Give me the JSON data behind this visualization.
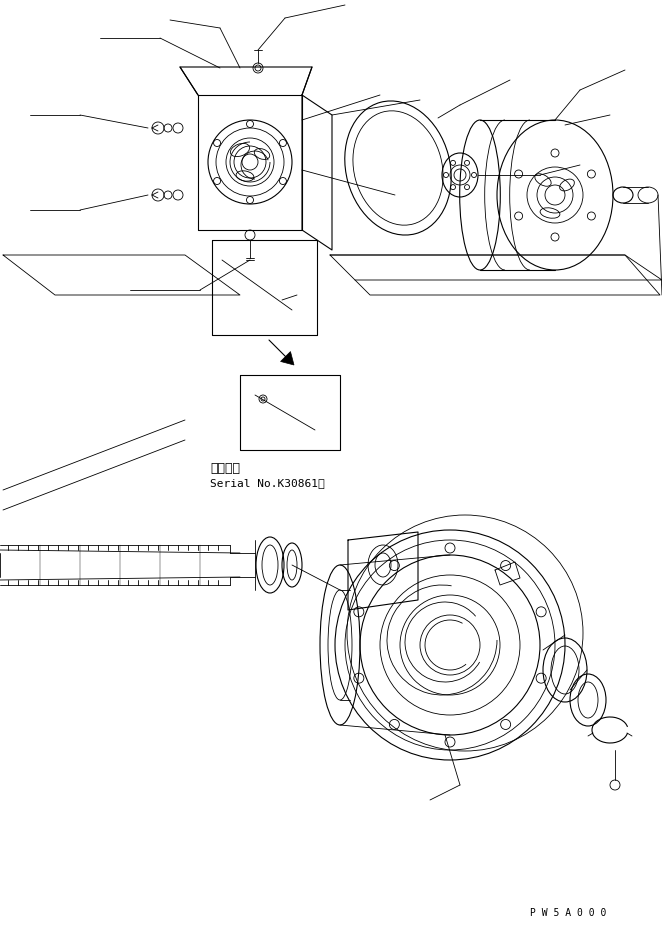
{
  "background_color": "#ffffff",
  "line_color": "#000000",
  "text_color": "#000000",
  "fig_width": 6.62,
  "fig_height": 9.3,
  "dpi": 100,
  "annotation_text_1": "適用号機",
  "annotation_text_2": "Serial No.K30861～",
  "watermark": "P W 5 A 0 0 0",
  "font_size_annotation": 8,
  "font_size_watermark": 7
}
